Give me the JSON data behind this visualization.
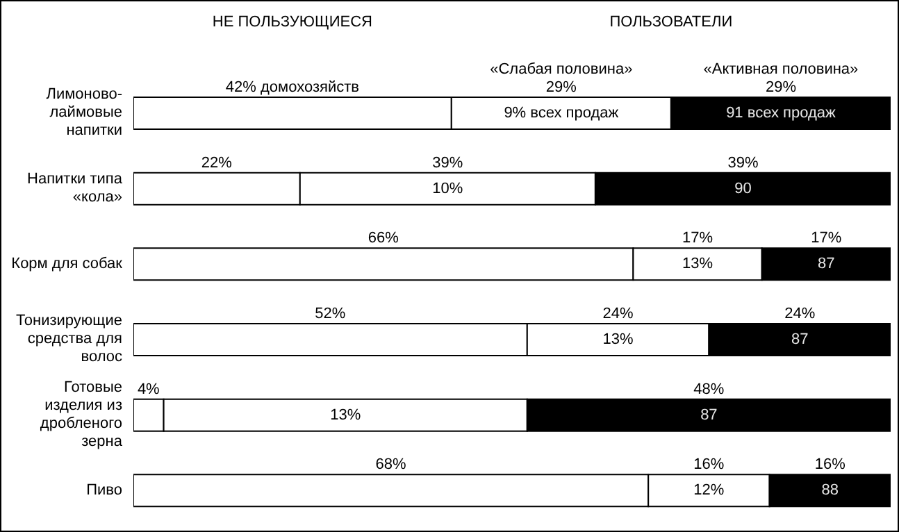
{
  "chart_data": {
    "type": "bar",
    "orientation": "horizontal",
    "stacked": true,
    "legend": false,
    "grid": false,
    "tick_labels": "y",
    "categories": [
      "Лимоново-лаймовые напитки",
      "Напитки типа «кола»",
      "Корм для собак",
      "Тонизирующие средства для волос",
      "Готовые изделия из дробленого зерна",
      "Пиво"
    ],
    "series": [
      {
        "color": "#ffffff",
        "values": [
          42,
          22,
          66,
          52,
          4,
          68
        ],
        "value_labels": [
          "42% домохозяйств",
          "22%",
          "66%",
          "52%",
          "4%",
          "68%"
        ]
      },
      {
        "name": "«Слабая половина»",
        "color": "#ffffff",
        "values": [
          29,
          39,
          17,
          24,
          48,
          16
        ],
        "value_labels": [
          "29%",
          "39%",
          "17%",
          "24%",
          null,
          "16%"
        ]
      },
      {
        "name": "«Активная половина»",
        "color": "#000000",
        "values": [
          29,
          39,
          17,
          24,
          48,
          16
        ],
        "value_labels": [
          "29%",
          "39%",
          "17%",
          "24%",
          "48%",
          "16%"
        ]
      }
    ],
    "annotations": [
      "НЕ ПОЛЬЗУЮЩИЕСЯ",
      "ПОЛЬЗОВАТЕЛИ",
      "9% всех продаж",
      "91 всех продаж",
      "10%",
      "90",
      "13%",
      "87",
      "13%",
      "87",
      "13%",
      "87",
      "12%",
      "88"
    ]
  }
}
